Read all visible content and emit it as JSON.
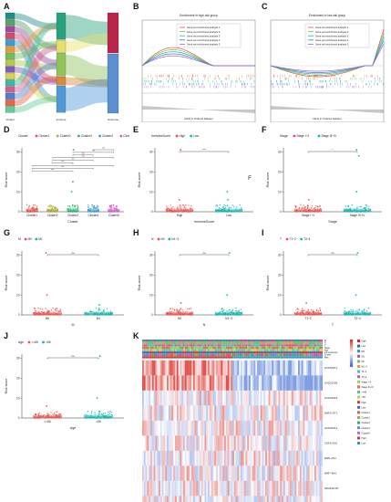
{
  "colors": {
    "red": "#e8524f",
    "teal": "#16b5b0",
    "green": "#7dbf3f",
    "blue": "#3a7bd5",
    "purple": "#b15fcf",
    "grey": "#8a8a8a"
  },
  "panels": {
    "A": {
      "label": "A",
      "axis_labels": [
        "Cluster",
        "Immune",
        "Outcome"
      ],
      "left_colors": [
        "#1f8f8a",
        "#5aa26b",
        "#9a4aa0",
        "#d24b6a",
        "#3a9bd5",
        "#e49a3a",
        "#6fbf5f",
        "#b8c84a",
        "#7b5fbf",
        "#d9d24f",
        "#3fb8a4",
        "#cf5f8f",
        "#4f7fd0",
        "#e06a4a",
        "#5fcf9a"
      ],
      "middle_colors": [
        "#2aa27f",
        "#e6e06a",
        "#8fc45a",
        "#d88a3a",
        "#4f9ad6"
      ],
      "right_colors": [
        "#b7264a",
        "#5b8fd0"
      ]
    },
    "B": {
      "label": "B",
      "title": "Enrichment in high-risk group",
      "xlabel": "Rank in Ordered Dataset",
      "legend": [
        "Gene set enrichment analysis 1",
        "Gene set enrichment analysis 2",
        "Gene set enrichment analysis 3",
        "Gene set enrichment analysis 4",
        "Gene set enrichment analysis 5"
      ],
      "line_colors": [
        "#e8524f",
        "#7dbf3f",
        "#16b5b0",
        "#3a7bd5",
        "#b15fcf"
      ]
    },
    "C": {
      "label": "C",
      "title": "Enrichment in low-risk group",
      "xlabel": "Rank in Ordered Dataset",
      "legend": [
        "Gene set enrichment analysis 1",
        "Gene set enrichment analysis 2",
        "Gene set enrichment analysis 3",
        "Gene set enrichment analysis 4",
        "Gene set enrichment analysis 5"
      ],
      "line_colors": [
        "#e8524f",
        "#7dbf3f",
        "#16b5b0",
        "#3a7bd5",
        "#b15fcf"
      ]
    },
    "D": {
      "label": "D",
      "legend_title": "Cluster",
      "groups": [
        "Cluster1",
        "Cluster2",
        "Cluster3",
        "Cluster4",
        "Cluster5"
      ],
      "group_colors": [
        "#e8524f",
        "#a9a93a",
        "#2fb36a",
        "#3a9bd5",
        "#d25fcf"
      ],
      "xlabel": "Cluster",
      "ylabel": "Risk score",
      "yticks": [
        "0",
        "10",
        "20",
        "30"
      ],
      "sig": [
        "***",
        "***",
        "***",
        "***",
        "***",
        "***",
        "*",
        "***",
        "***"
      ]
    },
    "E": {
      "label": "E",
      "legend_title": "ImmuneScore",
      "groups": [
        "High",
        "Low"
      ],
      "xlabel": "ImmuneScore",
      "ylabel": "Risk score",
      "yticks": [
        "0",
        "10",
        "20",
        "30"
      ],
      "sig": "***",
      "extra_letter": "F"
    },
    "F": {
      "label": "F",
      "legend_title": "Stage",
      "groups": [
        "Stage I~II",
        "Stage III~IV"
      ],
      "xlabel": "Stage",
      "ylabel": "Risk score",
      "yticks": [
        "0",
        "10",
        "20",
        "30"
      ],
      "sig": "*"
    },
    "G": {
      "label": "G",
      "legend_title": "M",
      "groups": [
        "M0",
        "M1"
      ],
      "xlabel": "M",
      "ylabel": "Risk score",
      "yticks": [
        "0",
        "10",
        "20",
        "30"
      ],
      "sig": "ns"
    },
    "H": {
      "label": "H",
      "legend_title": "N",
      "groups": [
        "N0",
        "N1~3"
      ],
      "xlabel": "N",
      "ylabel": "Risk score",
      "yticks": [
        "0",
        "10",
        "20",
        "30"
      ],
      "sig": "ns"
    },
    "I": {
      "label": "I",
      "legend_title": "T",
      "groups": [
        "T1~2",
        "T3~4"
      ],
      "xlabel": "T",
      "ylabel": "Risk score",
      "yticks": [
        "0",
        "10",
        "20",
        "30"
      ],
      "sig": "ns"
    },
    "J": {
      "label": "J",
      "legend_title": "Age",
      "groups": [
        "<=65",
        ">65"
      ],
      "xlabel": "Age",
      "ylabel": "Risk score",
      "yticks": [
        "0",
        "10",
        "20",
        "30"
      ],
      "sig": "ns"
    },
    "K": {
      "label": "K",
      "genes": [
        "LINC01871",
        "LINC02195",
        "LINC01615",
        "MAFG-DT1",
        "LINC01614",
        "CDKN-AS1",
        "RIPK-AS1",
        "MIR7-3HG",
        "NDUFA6-DT",
        "LAMTOR5-AS1"
      ],
      "annot_labels": [
        "M",
        "N",
        "T",
        "Stage",
        "Age",
        "ImmuneScore",
        "Cluster",
        "Risk"
      ],
      "legend_items": [
        "High",
        "Low",
        "M0",
        "M1",
        "N0",
        "N1~3",
        "T1~2",
        "T3~4",
        "Stage I~II",
        "Stage III~IV",
        "<=65",
        ">65",
        "High",
        "Low",
        "Cluster1",
        "Cluster2",
        "Cluster3",
        "Cluster4",
        "Cluster5",
        "High",
        "Low"
      ],
      "legend_colors": [
        "#d7261e",
        "#2b5fd1",
        "#1fa0a0",
        "#a64dc9",
        "#7fbf3f",
        "#e3a13a",
        "#3fb7e0",
        "#d94f8f",
        "#8fd35f",
        "#e56b3a",
        "#4fc1a4",
        "#c9c94f",
        "#cf3a3a",
        "#3a6fcf",
        "#e8524f",
        "#a9a93a",
        "#2fb36a",
        "#3a9bd5",
        "#d25fcf",
        "#d03a3a",
        "#3a8fd0"
      ]
    }
  }
}
